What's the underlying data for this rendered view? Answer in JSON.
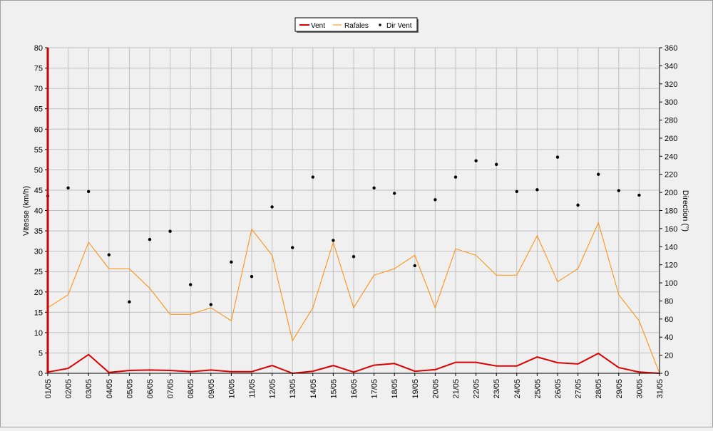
{
  "chart_data": {
    "type": "line",
    "categories": [
      "01/05",
      "02/05",
      "03/05",
      "04/05",
      "05/05",
      "06/05",
      "07/05",
      "08/05",
      "09/05",
      "10/05",
      "11/05",
      "12/05",
      "13/05",
      "14/05",
      "15/05",
      "16/05",
      "17/05",
      "18/05",
      "19/05",
      "20/05",
      "21/05",
      "22/05",
      "23/05",
      "24/05",
      "25/05",
      "26/05",
      "27/05",
      "28/05",
      "29/05",
      "30/05",
      "31/05"
    ],
    "y_left": {
      "label": "Vitesse (km/h)",
      "range": [
        0,
        80
      ],
      "step": 5
    },
    "y_right": {
      "label": "Direction (°)",
      "range": [
        0,
        360
      ],
      "step": 20
    },
    "grid": true,
    "legend_position": "top-center",
    "series": [
      {
        "name": "Vent",
        "type": "line",
        "axis": "left",
        "color": "#dd0000",
        "values": [
          0.3,
          1.2,
          4.6,
          0.2,
          0.7,
          0.8,
          0.7,
          0.4,
          0.8,
          0.4,
          0.4,
          1.9,
          0.0,
          0.5,
          1.9,
          0.3,
          2.0,
          2.4,
          0.5,
          0.9,
          2.7,
          2.7,
          1.8,
          1.8,
          4.0,
          2.6,
          2.3,
          4.9,
          1.4,
          0.3,
          0.0
        ]
      },
      {
        "name": "Rafales",
        "type": "line",
        "axis": "left",
        "color": "#ff8c00",
        "values": [
          16.1,
          19.3,
          32.2,
          25.7,
          25.7,
          20.9,
          14.5,
          14.5,
          16.1,
          12.9,
          35.4,
          29.0,
          8.0,
          16.1,
          32.2,
          16.1,
          24.1,
          25.7,
          29.0,
          16.1,
          30.6,
          29.0,
          24.1,
          24.1,
          33.8,
          22.5,
          25.7,
          37.0,
          19.3,
          12.9,
          0.0
        ]
      },
      {
        "name": "Dir Vent",
        "type": "scatter",
        "axis": "right",
        "color": "#000000",
        "values": [
          196,
          205,
          201,
          131,
          79,
          148,
          157,
          98,
          76,
          123,
          107,
          184,
          139,
          217,
          147,
          129,
          205,
          199,
          119,
          192,
          217,
          235,
          231,
          201,
          203,
          239,
          186,
          220,
          202,
          197,
          null
        ]
      }
    ]
  }
}
